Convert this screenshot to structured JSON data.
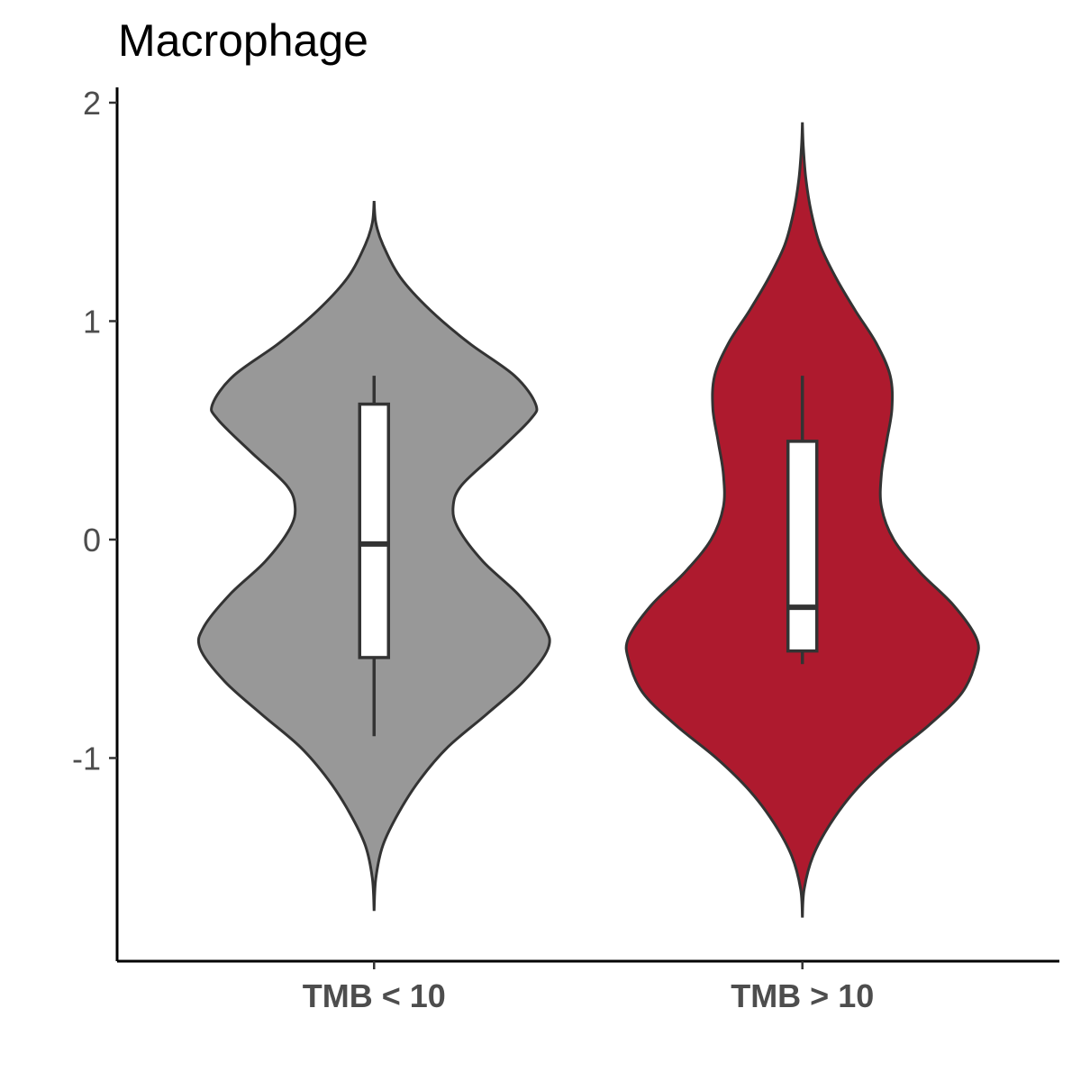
{
  "chart_data": {
    "type": "violin",
    "title": "Macrophage",
    "xlabel": "",
    "ylabel": "",
    "ylim": [
      -1.93,
      2.07
    ],
    "yticks": [
      -1,
      0,
      1,
      2
    ],
    "ytick_labels": [
      "-1",
      "0",
      "1",
      "2"
    ],
    "categories": [
      "TMB < 10",
      "TMB > 10"
    ],
    "grid": false,
    "legend": "none",
    "groups": [
      {
        "category": "TMB < 10",
        "fill": "#989898",
        "range": [
          -1.7,
          1.55
        ],
        "box": {
          "lower_whisker": -0.9,
          "q1": -0.54,
          "median": -0.02,
          "q3": 0.62,
          "upper_whisker": 0.75
        },
        "density_profile": [
          [
            -1.7,
            0.0
          ],
          [
            -1.55,
            0.01
          ],
          [
            -1.4,
            0.05
          ],
          [
            -1.25,
            0.14
          ],
          [
            -1.1,
            0.26
          ],
          [
            -0.95,
            0.42
          ],
          [
            -0.8,
            0.64
          ],
          [
            -0.65,
            0.85
          ],
          [
            -0.5,
            0.99
          ],
          [
            -0.4,
            0.97
          ],
          [
            -0.25,
            0.82
          ],
          [
            -0.1,
            0.62
          ],
          [
            0.05,
            0.48
          ],
          [
            0.15,
            0.45
          ],
          [
            0.25,
            0.5
          ],
          [
            0.4,
            0.7
          ],
          [
            0.55,
            0.89
          ],
          [
            0.62,
            0.92
          ],
          [
            0.75,
            0.8
          ],
          [
            0.9,
            0.54
          ],
          [
            1.05,
            0.32
          ],
          [
            1.2,
            0.15
          ],
          [
            1.35,
            0.05
          ],
          [
            1.45,
            0.01
          ],
          [
            1.55,
            0.0
          ]
        ]
      },
      {
        "category": "TMB > 10",
        "fill": "#ae1a2e",
        "range": [
          -1.73,
          1.91
        ],
        "box": {
          "lower_whisker": -0.57,
          "q1": -0.51,
          "median": -0.31,
          "q3": 0.45,
          "upper_whisker": 0.75
        },
        "density_profile": [
          [
            -1.73,
            0.0
          ],
          [
            -1.6,
            0.01
          ],
          [
            -1.45,
            0.06
          ],
          [
            -1.3,
            0.16
          ],
          [
            -1.15,
            0.3
          ],
          [
            -1.0,
            0.49
          ],
          [
            -0.85,
            0.72
          ],
          [
            -0.7,
            0.91
          ],
          [
            -0.55,
            0.99
          ],
          [
            -0.45,
            0.99
          ],
          [
            -0.3,
            0.86
          ],
          [
            -0.15,
            0.67
          ],
          [
            0.0,
            0.52
          ],
          [
            0.15,
            0.45
          ],
          [
            0.3,
            0.45
          ],
          [
            0.45,
            0.48
          ],
          [
            0.6,
            0.51
          ],
          [
            0.75,
            0.5
          ],
          [
            0.9,
            0.42
          ],
          [
            1.05,
            0.3
          ],
          [
            1.2,
            0.19
          ],
          [
            1.35,
            0.1
          ],
          [
            1.5,
            0.05
          ],
          [
            1.65,
            0.02
          ],
          [
            1.8,
            0.005
          ],
          [
            1.91,
            0.0
          ]
        ]
      }
    ]
  }
}
